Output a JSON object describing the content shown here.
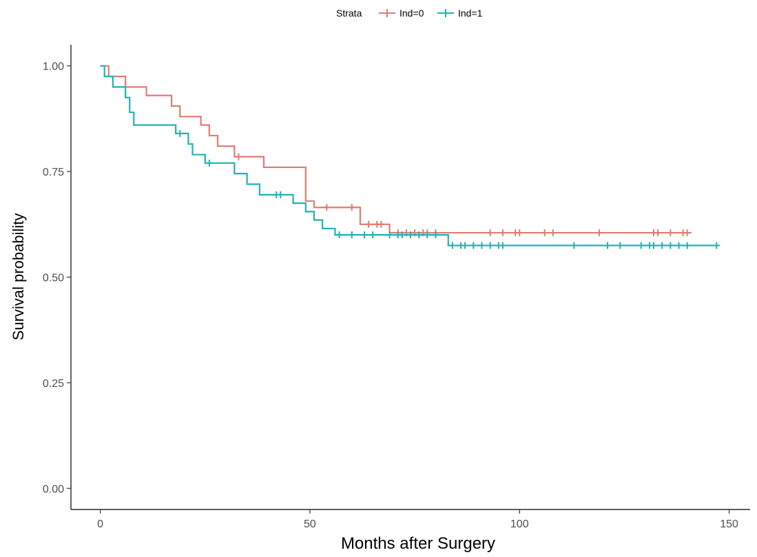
{
  "chart_data": {
    "type": "line",
    "title": "",
    "xlabel": "Months after Surgery",
    "ylabel": "Survival probability",
    "xlim": [
      -7,
      155
    ],
    "ylim": [
      -0.05,
      1.05
    ],
    "x_ticks": [
      0,
      50,
      100,
      150
    ],
    "x_tick_labels": [
      "0",
      "50",
      "100",
      "150"
    ],
    "y_ticks": [
      0,
      0.25,
      0.5,
      0.75,
      1.0
    ],
    "y_tick_labels": [
      "0.00",
      "0.25",
      "0.50",
      "0.75",
      "1.00"
    ],
    "grid": false,
    "legend": {
      "title": "Strata",
      "placement": "top",
      "entries": [
        "Ind=0",
        "Ind=1"
      ]
    },
    "series": [
      {
        "name": "Ind=0",
        "color": "#e07b73",
        "steps": [
          [
            0,
            1.0
          ],
          [
            2,
            0.975
          ],
          [
            6,
            0.95
          ],
          [
            11,
            0.93
          ],
          [
            17,
            0.905
          ],
          [
            19,
            0.88
          ],
          [
            24,
            0.86
          ],
          [
            26,
            0.835
          ],
          [
            28,
            0.81
          ],
          [
            32,
            0.785
          ],
          [
            39,
            0.76
          ],
          [
            49,
            0.68
          ],
          [
            51,
            0.665
          ],
          [
            62,
            0.625
          ],
          [
            69,
            0.605
          ],
          [
            141,
            0.605
          ]
        ],
        "censored_x": [
          33,
          54,
          60,
          64,
          66,
          67,
          71,
          73,
          75,
          77,
          78,
          80,
          93,
          96,
          99,
          100,
          106,
          108,
          119,
          132,
          133,
          136,
          139,
          140
        ]
      },
      {
        "name": "Ind=1",
        "color": "#1fb2b4",
        "steps": [
          [
            0,
            1.0
          ],
          [
            1,
            0.975
          ],
          [
            3,
            0.95
          ],
          [
            6,
            0.925
          ],
          [
            7,
            0.89
          ],
          [
            8,
            0.86
          ],
          [
            18,
            0.84
          ],
          [
            21,
            0.815
          ],
          [
            22,
            0.79
          ],
          [
            25,
            0.77
          ],
          [
            32,
            0.745
          ],
          [
            35,
            0.72
          ],
          [
            38,
            0.695
          ],
          [
            46,
            0.675
          ],
          [
            49,
            0.655
          ],
          [
            51,
            0.635
          ],
          [
            53,
            0.615
          ],
          [
            56,
            0.6
          ],
          [
            83,
            0.575
          ],
          [
            147,
            0.575
          ]
        ],
        "censored_x": [
          19,
          26,
          42,
          43,
          57,
          60,
          63,
          65,
          69,
          71,
          72,
          74,
          76,
          78,
          80,
          84,
          86,
          87,
          89,
          91,
          93,
          95,
          96,
          113,
          121,
          124,
          129,
          131,
          132,
          134,
          136,
          138,
          140,
          147
        ]
      }
    ]
  }
}
